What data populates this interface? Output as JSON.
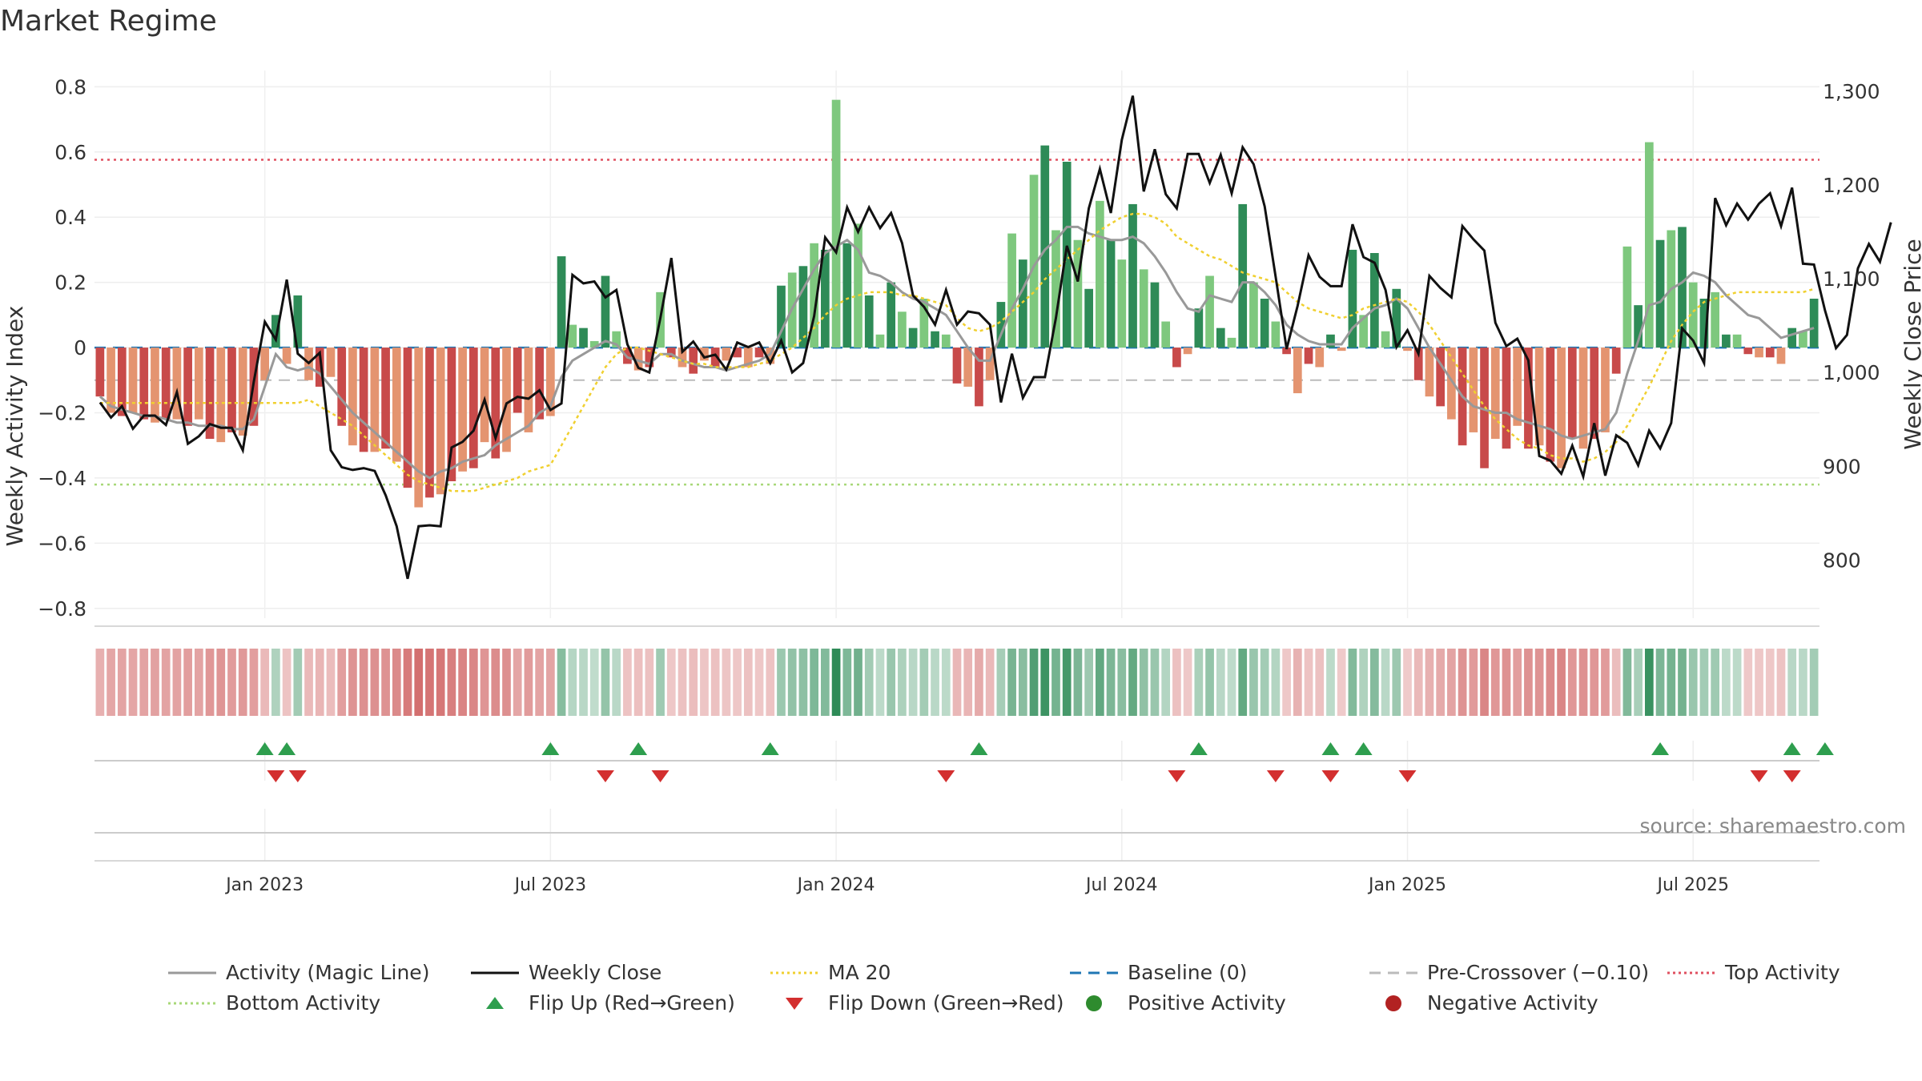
{
  "chart_data": {
    "type": "bar",
    "title": "Market Regime",
    "source": "source: sharemaestro.com",
    "ylabel_left": "Weekly Activity Index",
    "ylabel_right": "Weekly Close Price",
    "y_left_range": [
      -0.83,
      0.85
    ],
    "y_right_range": [
      738,
      1322
    ],
    "y_left_ticks": [
      {
        "v": 0.8,
        "label": "0.8"
      },
      {
        "v": 0.6,
        "label": "0.6"
      },
      {
        "v": 0.4,
        "label": "0.4"
      },
      {
        "v": 0.2,
        "label": "0.2"
      },
      {
        "v": 0,
        "label": "0"
      },
      {
        "v": -0.2,
        "label": "−0.2"
      },
      {
        "v": -0.4,
        "label": "−0.4"
      },
      {
        "v": -0.6,
        "label": "−0.6"
      },
      {
        "v": -0.8,
        "label": "−0.8"
      }
    ],
    "y_right_ticks": [
      {
        "v": 1300,
        "label": "1,300"
      },
      {
        "v": 1200,
        "label": "1,200"
      },
      {
        "v": 1100,
        "label": "1,100"
      },
      {
        "v": 1000,
        "label": "1,000"
      },
      {
        "v": 900,
        "label": "900"
      },
      {
        "v": 800,
        "label": "800"
      }
    ],
    "x_ticks": [
      {
        "week": 15,
        "label": "Jan 2023"
      },
      {
        "week": 41,
        "label": "Jul 2023"
      },
      {
        "week": 67,
        "label": "Jan 2024"
      },
      {
        "week": 93,
        "label": "Jul 2024"
      },
      {
        "week": 119,
        "label": "Jan 2025"
      },
      {
        "week": 145,
        "label": "Jul 2025"
      }
    ],
    "weeks_total": 157,
    "reference_lines": {
      "top_activity": 0.576,
      "bottom_activity": -0.42,
      "pre_crossover": -0.1,
      "baseline": 0
    },
    "activity": [
      -0.15,
      -0.2,
      -0.21,
      -0.2,
      -0.22,
      -0.23,
      -0.22,
      -0.22,
      -0.24,
      -0.22,
      -0.28,
      -0.29,
      -0.26,
      -0.27,
      -0.24,
      -0.1,
      0.1,
      -0.05,
      0.16,
      -0.1,
      -0.12,
      -0.09,
      -0.24,
      -0.3,
      -0.32,
      -0.32,
      -0.31,
      -0.35,
      -0.43,
      -0.49,
      -0.46,
      -0.45,
      -0.41,
      -0.38,
      -0.37,
      -0.29,
      -0.34,
      -0.32,
      -0.2,
      -0.26,
      -0.22,
      -0.21,
      0.28,
      0.07,
      0.06,
      0.02,
      0.22,
      0.05,
      -0.05,
      -0.07,
      -0.06,
      0.17,
      -0.03,
      -0.06,
      -0.08,
      -0.04,
      -0.06,
      -0.04,
      -0.03,
      -0.06,
      -0.03,
      -0.05,
      0.19,
      0.23,
      0.25,
      0.32,
      0.3,
      0.76,
      0.32,
      0.38,
      0.16,
      0.04,
      0.2,
      0.11,
      0.06,
      0.15,
      0.05,
      0.04,
      -0.11,
      -0.12,
      -0.18,
      -0.1,
      0.14,
      0.35,
      0.27,
      0.53,
      0.62,
      0.36,
      0.57,
      0.33,
      0.18,
      0.45,
      0.33,
      0.27,
      0.44,
      0.24,
      0.2,
      0.08,
      -0.06,
      -0.02,
      0.12,
      0.22,
      0.06,
      0.03,
      0.44,
      0.2,
      0.15,
      0.08,
      -0.02,
      -0.14,
      -0.05,
      -0.06,
      0.04,
      -0.01,
      0.3,
      0.1,
      0.29,
      0.05,
      0.18,
      -0.01,
      -0.1,
      -0.15,
      -0.18,
      -0.22,
      -0.3,
      -0.26,
      -0.37,
      -0.28,
      -0.31,
      -0.24,
      -0.31,
      -0.3,
      -0.35,
      -0.37,
      -0.28,
      -0.31,
      -0.28,
      -0.26,
      -0.08,
      0.31,
      0.13,
      0.63,
      0.33,
      0.36,
      0.37,
      0.2,
      0.15,
      0.17,
      0.04,
      0.04,
      -0.02,
      -0.03,
      -0.03,
      -0.05,
      0.06,
      0.05,
      0.15
    ],
    "magic_line": [
      -0.15,
      -0.18,
      -0.19,
      -0.2,
      -0.21,
      -0.21,
      -0.22,
      -0.23,
      -0.23,
      -0.24,
      -0.24,
      -0.24,
      -0.25,
      -0.25,
      -0.22,
      -0.12,
      -0.02,
      -0.06,
      -0.07,
      -0.06,
      -0.08,
      -0.12,
      -0.16,
      -0.2,
      -0.23,
      -0.26,
      -0.29,
      -0.32,
      -0.35,
      -0.38,
      -0.4,
      -0.38,
      -0.37,
      -0.35,
      -0.34,
      -0.33,
      -0.3,
      -0.28,
      -0.26,
      -0.24,
      -0.2,
      -0.18,
      -0.09,
      -0.04,
      -0.02,
      0.0,
      0.02,
      0.01,
      -0.03,
      -0.04,
      -0.05,
      -0.02,
      -0.02,
      -0.04,
      -0.05,
      -0.06,
      -0.06,
      -0.07,
      -0.06,
      -0.05,
      -0.04,
      -0.02,
      0.05,
      0.12,
      0.18,
      0.24,
      0.29,
      0.31,
      0.33,
      0.3,
      0.23,
      0.22,
      0.2,
      0.17,
      0.15,
      0.14,
      0.12,
      0.1,
      0.05,
      0.0,
      -0.04,
      -0.04,
      0.04,
      0.12,
      0.18,
      0.25,
      0.3,
      0.33,
      0.37,
      0.37,
      0.35,
      0.34,
      0.33,
      0.33,
      0.34,
      0.32,
      0.28,
      0.23,
      0.17,
      0.12,
      0.11,
      0.16,
      0.15,
      0.14,
      0.2,
      0.2,
      0.17,
      0.13,
      0.07,
      0.04,
      0.02,
      0.01,
      0.01,
      0.01,
      0.06,
      0.09,
      0.12,
      0.13,
      0.15,
      0.12,
      0.06,
      0.0,
      -0.05,
      -0.1,
      -0.15,
      -0.18,
      -0.19,
      -0.2,
      -0.2,
      -0.22,
      -0.23,
      -0.24,
      -0.25,
      -0.27,
      -0.28,
      -0.27,
      -0.26,
      -0.25,
      -0.2,
      -0.08,
      0.02,
      0.13,
      0.14,
      0.18,
      0.2,
      0.23,
      0.22,
      0.2,
      0.16,
      0.13,
      0.1,
      0.09,
      0.06,
      0.03,
      0.04,
      0.05,
      0.06
    ],
    "ma20": [
      -0.17,
      -0.17,
      -0.17,
      -0.17,
      -0.17,
      -0.17,
      -0.17,
      -0.17,
      -0.17,
      -0.17,
      -0.17,
      -0.17,
      -0.17,
      -0.17,
      -0.17,
      -0.17,
      -0.17,
      -0.17,
      -0.17,
      -0.16,
      -0.18,
      -0.2,
      -0.22,
      -0.24,
      -0.27,
      -0.3,
      -0.33,
      -0.36,
      -0.39,
      -0.41,
      -0.42,
      -0.43,
      -0.44,
      -0.44,
      -0.44,
      -0.43,
      -0.42,
      -0.41,
      -0.4,
      -0.38,
      -0.37,
      -0.36,
      -0.3,
      -0.24,
      -0.18,
      -0.12,
      -0.06,
      -0.02,
      0.0,
      0.0,
      -0.01,
      -0.02,
      -0.03,
      -0.04,
      -0.05,
      -0.05,
      -0.06,
      -0.06,
      -0.06,
      -0.06,
      -0.05,
      -0.04,
      -0.02,
      0.0,
      0.03,
      0.06,
      0.1,
      0.13,
      0.15,
      0.16,
      0.17,
      0.17,
      0.17,
      0.16,
      0.16,
      0.15,
      0.14,
      0.13,
      0.09,
      0.06,
      0.05,
      0.06,
      0.08,
      0.11,
      0.14,
      0.17,
      0.21,
      0.24,
      0.27,
      0.3,
      0.33,
      0.36,
      0.38,
      0.4,
      0.41,
      0.41,
      0.4,
      0.38,
      0.34,
      0.32,
      0.3,
      0.28,
      0.27,
      0.25,
      0.23,
      0.22,
      0.21,
      0.2,
      0.17,
      0.14,
      0.12,
      0.11,
      0.1,
      0.09,
      0.1,
      0.12,
      0.13,
      0.14,
      0.15,
      0.14,
      0.11,
      0.07,
      0.02,
      -0.03,
      -0.08,
      -0.13,
      -0.18,
      -0.22,
      -0.25,
      -0.28,
      -0.3,
      -0.31,
      -0.33,
      -0.34,
      -0.34,
      -0.35,
      -0.34,
      -0.32,
      -0.29,
      -0.24,
      -0.18,
      -0.12,
      -0.05,
      0.02,
      0.07,
      0.11,
      0.14,
      0.15,
      0.16,
      0.17,
      0.17,
      0.17,
      0.17,
      0.17,
      0.17,
      0.17,
      0.18
    ],
    "weekly_close": [
      968,
      952,
      964,
      940,
      954,
      954,
      944,
      979,
      924,
      932,
      945,
      941,
      941,
      917,
      990,
      1054,
      1035,
      1099,
      1020,
      1010,
      1021,
      917,
      899,
      896,
      898,
      895,
      869,
      836,
      780,
      836,
      837,
      836,
      920,
      926,
      938,
      971,
      930,
      967,
      974,
      972,
      981,
      960,
      967,
      1104,
      1095,
      1097,
      1080,
      1088,
      1030,
      1005,
      1000,
      1058,
      1122,
      1022,
      1033,
      1016,
      1019,
      1003,
      1032,
      1027,
      1032,
      1010,
      1034,
      1000,
      1010,
      1060,
      1144,
      1128,
      1176,
      1150,
      1176,
      1154,
      1170,
      1138,
      1082,
      1070,
      1051,
      1088,
      1051,
      1065,
      1063,
      1051,
      968,
      1020,
      973,
      995,
      995,
      1058,
      1135,
      1097,
      1175,
      1217,
      1170,
      1248,
      1295,
      1193,
      1238,
      1190,
      1175,
      1233,
      1233,
      1202,
      1232,
      1191,
      1240,
      1222,
      1177,
      1102,
      1025,
      1071,
      1125,
      1102,
      1092,
      1092,
      1158,
      1123,
      1117,
      1088,
      1027,
      1045,
      1020,
      1103,
      1090,
      1080,
      1156,
      1142,
      1130,
      1053,
      1028,
      1036,
      1013,
      911,
      906,
      892,
      922,
      889,
      946,
      890,
      933,
      925,
      901,
      938,
      919,
      946,
      1047,
      1034,
      1010,
      1186,
      1157,
      1180,
      1163,
      1180,
      1191,
      1156,
      1197,
      1116,
      1115,
      1066,
      1026,
      1040,
      1111,
      1137,
      1118,
      1160
    ]
  },
  "flips": {
    "up": [
      15,
      17,
      41,
      49,
      61,
      80,
      100,
      112,
      115,
      142,
      154,
      157
    ],
    "down": [
      16,
      18,
      46,
      51,
      77,
      98,
      107,
      112,
      119,
      151,
      154
    ]
  },
  "colors": {
    "red_strong": "#c84a4a",
    "red_light": "#e49470",
    "green_strong": "#2e8b57",
    "green_light": "#7ec87e",
    "magic_line": "#999999",
    "close": "#111111",
    "ma20": "#f0d030",
    "baseline": "#1f77b4",
    "pre_crossover": "#bbbbbb",
    "top_activity": "#e05060",
    "bottom_activity": "#a8d878",
    "flip_up": "#2e9e4e",
    "flip_down": "#d32f2f",
    "pos_activity": "#2e8b2e",
    "neg_activity": "#b22222"
  },
  "legend": [
    {
      "key": "magic",
      "label": "Activity (Magic Line)",
      "symbol": "line-solid",
      "color": "#999999"
    },
    {
      "key": "close",
      "label": "Weekly Close",
      "symbol": "line-solid",
      "color": "#111111"
    },
    {
      "key": "ma20",
      "label": "MA 20",
      "symbol": "line-dotted",
      "color": "#f0d030"
    },
    {
      "key": "baseline",
      "label": "Baseline (0)",
      "symbol": "line-dashed",
      "color": "#1f77b4"
    },
    {
      "key": "precross",
      "label": "Pre-Crossover (−0.10)",
      "symbol": "line-dashed",
      "color": "#bbbbbb"
    },
    {
      "key": "top",
      "label": "Top Activity",
      "symbol": "line-dotted",
      "color": "#e05060"
    },
    {
      "key": "bottom",
      "label": "Bottom Activity",
      "symbol": "line-dotted",
      "color": "#a8d878"
    },
    {
      "key": "flipup",
      "label": "Flip Up (Red→Green)",
      "symbol": "triangle-up",
      "color": "#2e9e4e"
    },
    {
      "key": "flipdown",
      "label": "Flip Down (Green→Red)",
      "symbol": "triangle-down",
      "color": "#d32f2f"
    },
    {
      "key": "pos",
      "label": "Positive Activity",
      "symbol": "dot",
      "color": "#2e8b2e"
    },
    {
      "key": "neg",
      "label": "Negative Activity",
      "symbol": "dot",
      "color": "#b22222"
    }
  ]
}
